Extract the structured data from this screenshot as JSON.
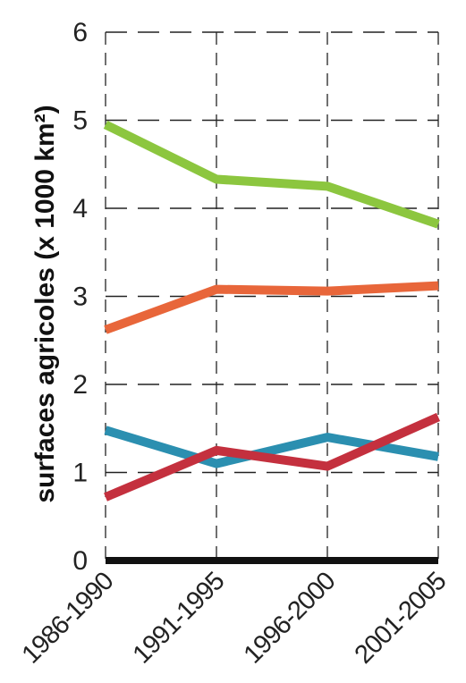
{
  "chart_data": {
    "type": "line",
    "title": "",
    "xlabel": "",
    "ylabel": "surfaces agricoles (x 1000 km²)",
    "categories": [
      "1986-1990",
      "1991-1995",
      "1996-2000",
      "2001-2005"
    ],
    "ylim": [
      0,
      6
    ],
    "yticks": [
      "0",
      "1",
      "2",
      "3",
      "4",
      "5",
      "6"
    ],
    "grid": true,
    "legend": "none",
    "series": [
      {
        "color": "#8cc63f",
        "values": [
          4.95,
          4.33,
          4.25,
          3.82
        ]
      },
      {
        "color": "#e8663a",
        "values": [
          2.62,
          3.08,
          3.06,
          3.12
        ]
      },
      {
        "color": "#2b8fb0",
        "values": [
          1.48,
          1.1,
          1.4,
          1.18
        ]
      },
      {
        "color": "#c4303e",
        "values": [
          0.72,
          1.25,
          1.07,
          1.63
        ]
      }
    ]
  }
}
